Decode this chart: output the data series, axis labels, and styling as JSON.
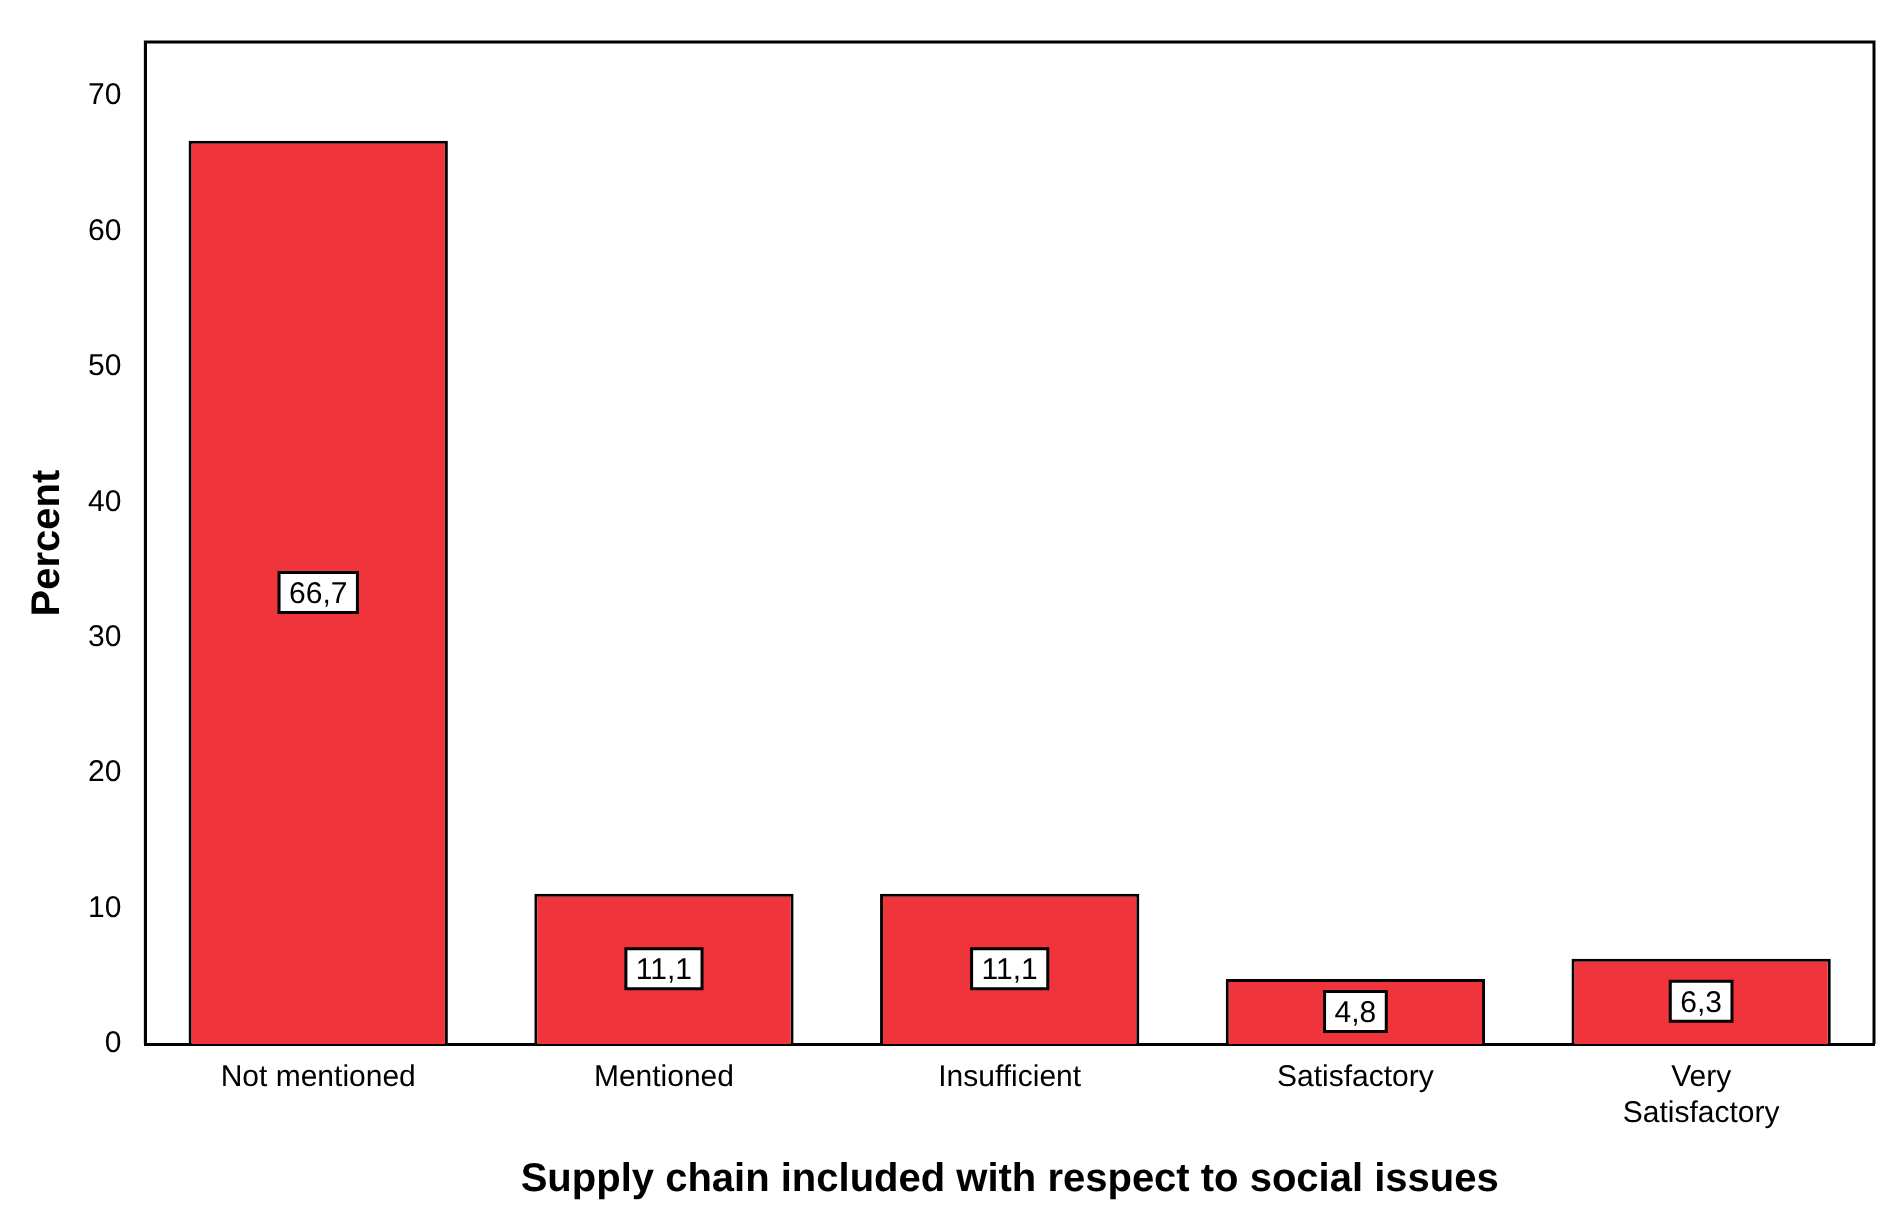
{
  "chart_data": {
    "type": "bar",
    "xlabel": "Supply chain included with respect to social issues",
    "ylabel": "Percent",
    "categories": [
      "Not mentioned",
      "Mentioned",
      "Insufficient",
      "Satisfactory",
      "Very Satisfactory"
    ],
    "values": [
      66.7,
      11.1,
      11.1,
      4.8,
      6.3
    ],
    "value_labels": [
      "66,7",
      "11,1",
      "11,1",
      "4,8",
      "6,3"
    ],
    "color": "#f0343c",
    "ylim": [
      0,
      74
    ],
    "yticks": [
      0,
      10,
      20,
      30,
      40,
      50,
      60,
      70
    ],
    "grid": false,
    "legend": false
  }
}
